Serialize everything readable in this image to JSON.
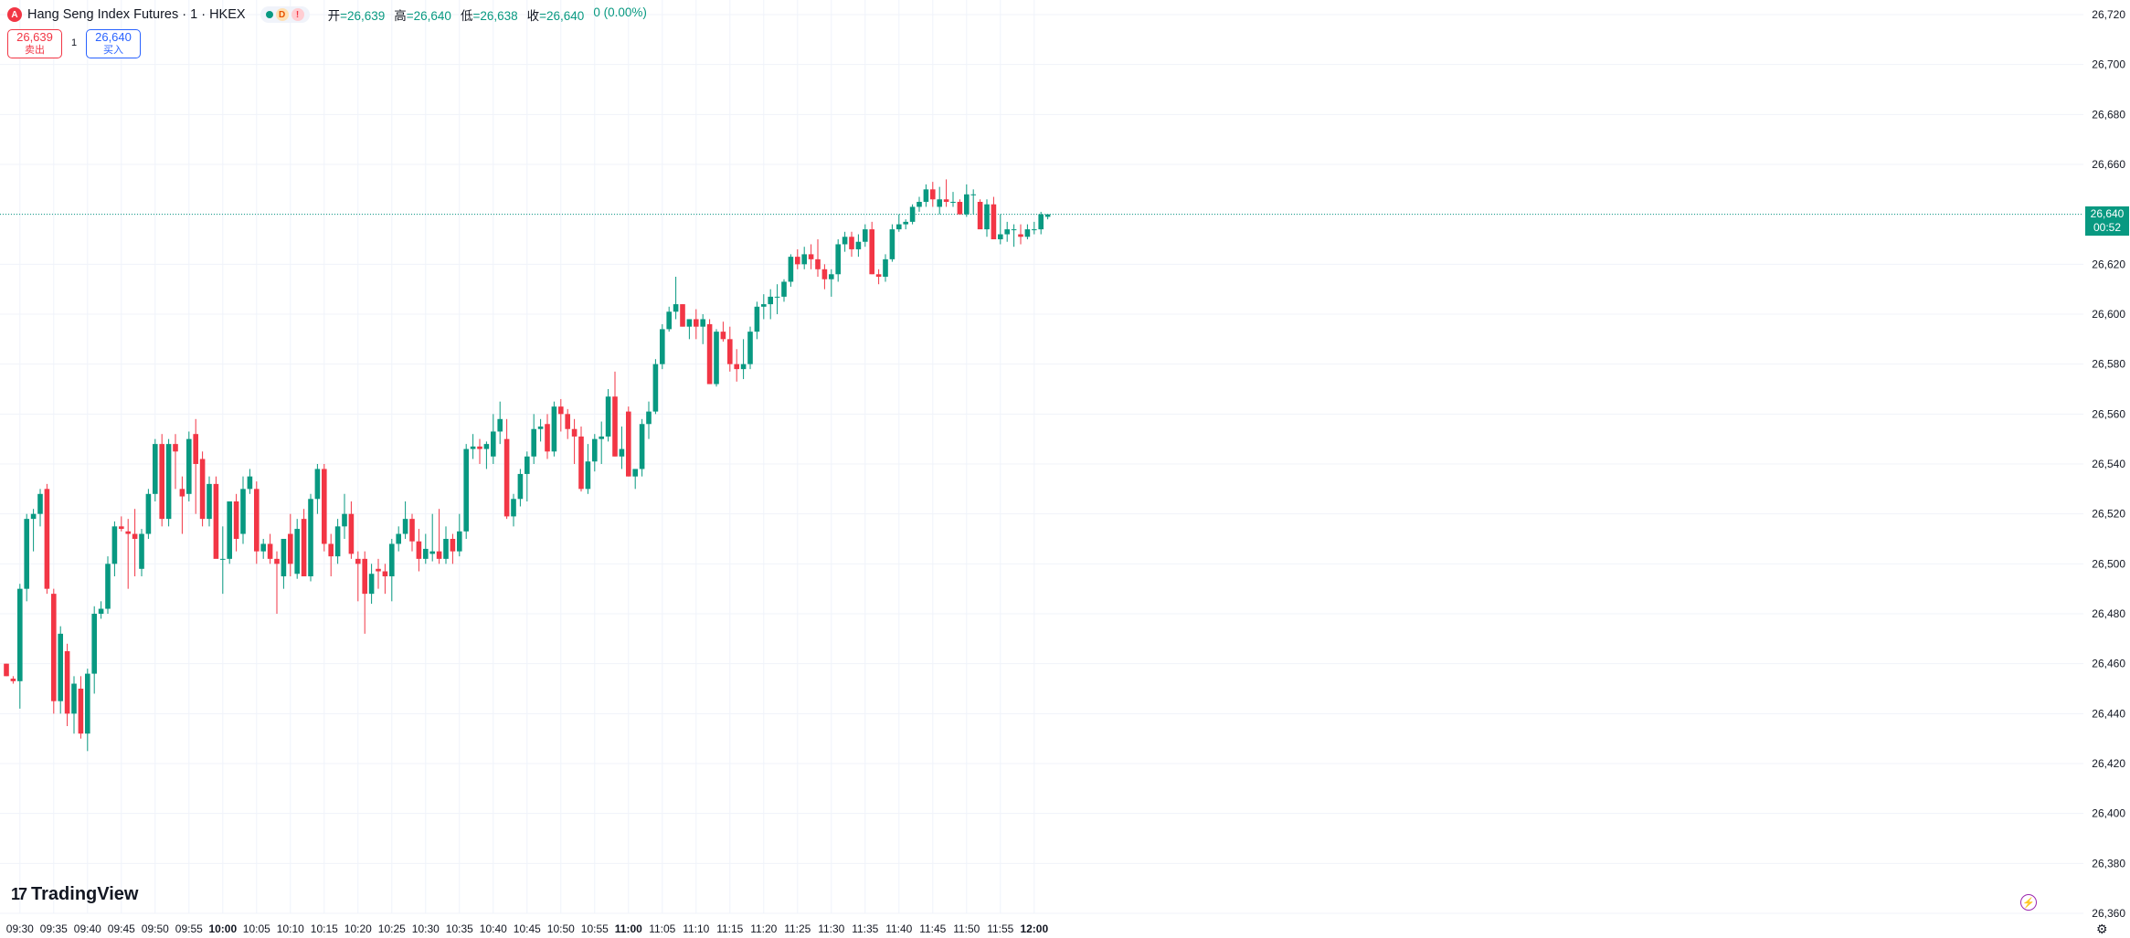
{
  "header": {
    "symbol_icon": "A",
    "title": "Hang Seng Index Futures · 1 · HKEX",
    "status": {
      "dot": "market-open-dot",
      "d_badge": "D",
      "alert_badge": "!"
    },
    "ohlc": {
      "open_label": "开",
      "open": "=26,639",
      "high_label": "高",
      "high": "=26,640",
      "low_label": "低",
      "low": "=26,638",
      "close_label": "收",
      "close": "=26,640",
      "change": "0 (0.00%)"
    }
  },
  "trade": {
    "sell_price": "26,639",
    "sell_label": "卖出",
    "quantity": "1",
    "buy_price": "26,640",
    "buy_label": "买入"
  },
  "price_tag": {
    "price": "26,640",
    "countdown": "00:52"
  },
  "footer": {
    "logo_text": "TradingView",
    "logo_mark": "17",
    "settings_icon": "gear-icon",
    "bolt_icon": "lightning-icon"
  },
  "colors": {
    "up": "#089981",
    "down": "#f23645",
    "grid": "#f0f3fa",
    "axis_text": "#131722"
  },
  "chart_data": {
    "type": "candlestick",
    "title": "",
    "xlabel": "",
    "ylabel": "",
    "ylim": [
      26360,
      26720
    ],
    "yticks": [
      "26,720",
      "26,700",
      "26,680",
      "26,660",
      "26,640",
      "26,620",
      "26,600",
      "26,580",
      "26,560",
      "26,540",
      "26,520",
      "26,500",
      "26,480",
      "26,460",
      "26,440",
      "26,420",
      "26,400",
      "26,380",
      "26,360"
    ],
    "xticks": [
      {
        "label": "09:30",
        "bar": 2,
        "bold": false
      },
      {
        "label": "09:35",
        "bar": 7,
        "bold": false
      },
      {
        "label": "09:40",
        "bar": 12,
        "bold": false
      },
      {
        "label": "09:45",
        "bar": 17,
        "bold": false
      },
      {
        "label": "09:50",
        "bar": 22,
        "bold": false
      },
      {
        "label": "09:55",
        "bar": 27,
        "bold": false
      },
      {
        "label": "10:00",
        "bar": 32,
        "bold": true
      },
      {
        "label": "10:05",
        "bar": 37,
        "bold": false
      },
      {
        "label": "10:10",
        "bar": 42,
        "bold": false
      },
      {
        "label": "10:15",
        "bar": 47,
        "bold": false
      },
      {
        "label": "10:20",
        "bar": 52,
        "bold": false
      },
      {
        "label": "10:25",
        "bar": 57,
        "bold": false
      },
      {
        "label": "10:30",
        "bar": 62,
        "bold": false
      },
      {
        "label": "10:35",
        "bar": 67,
        "bold": false
      },
      {
        "label": "10:40",
        "bar": 72,
        "bold": false
      },
      {
        "label": "10:45",
        "bar": 77,
        "bold": false
      },
      {
        "label": "10:50",
        "bar": 82,
        "bold": false
      },
      {
        "label": "10:55",
        "bar": 87,
        "bold": false
      },
      {
        "label": "11:00",
        "bar": 92,
        "bold": true
      },
      {
        "label": "11:05",
        "bar": 97,
        "bold": false
      },
      {
        "label": "11:10",
        "bar": 102,
        "bold": false
      },
      {
        "label": "11:15",
        "bar": 107,
        "bold": false
      },
      {
        "label": "11:20",
        "bar": 112,
        "bold": false
      },
      {
        "label": "11:25",
        "bar": 117,
        "bold": false
      },
      {
        "label": "11:30",
        "bar": 122,
        "bold": false
      },
      {
        "label": "11:35",
        "bar": 127,
        "bold": false
      },
      {
        "label": "11:40",
        "bar": 132,
        "bold": false
      },
      {
        "label": "11:45",
        "bar": 137,
        "bold": false
      },
      {
        "label": "11:50",
        "bar": 142,
        "bold": false
      },
      {
        "label": "11:55",
        "bar": 147,
        "bold": false
      },
      {
        "label": "12:00",
        "bar": 152,
        "bold": true
      }
    ],
    "last_price": 26640,
    "candles": [
      [
        26460,
        26460,
        26455,
        26455
      ],
      [
        26454,
        26455,
        26452,
        26453
      ],
      [
        26453,
        26492,
        26442,
        26490
      ],
      [
        26490,
        26520,
        26485,
        26518
      ],
      [
        26518,
        26522,
        26505,
        26520
      ],
      [
        26520,
        26530,
        26515,
        26528
      ],
      [
        26530,
        26532,
        26488,
        26490
      ],
      [
        26488,
        26490,
        26440,
        26445
      ],
      [
        26445,
        26475,
        26440,
        26472
      ],
      [
        26465,
        26468,
        26435,
        26440
      ],
      [
        26440,
        26455,
        26432,
        26452
      ],
      [
        26450,
        26455,
        26430,
        26432
      ],
      [
        26432,
        26458,
        26425,
        26456
      ],
      [
        26456,
        26483,
        26448,
        26480
      ],
      [
        26480,
        26485,
        26478,
        26482
      ],
      [
        26482,
        26503,
        26480,
        26500
      ],
      [
        26500,
        26517,
        26495,
        26515
      ],
      [
        26515,
        26519,
        26513,
        26514
      ],
      [
        26513,
        26518,
        26490,
        26512
      ],
      [
        26512,
        26522,
        26495,
        26510
      ],
      [
        26498,
        26514,
        26495,
        26512
      ],
      [
        26512,
        26530,
        26510,
        26528
      ],
      [
        26528,
        26550,
        26525,
        26548
      ],
      [
        26548,
        26552,
        26515,
        26518
      ],
      [
        26518,
        26550,
        26515,
        26548
      ],
      [
        26548,
        26552,
        26530,
        26545
      ],
      [
        26530,
        26535,
        26512,
        26527
      ],
      [
        26528,
        26553,
        26525,
        26550
      ],
      [
        26552,
        26558,
        26520,
        26540
      ],
      [
        26542,
        26545,
        26515,
        26518
      ],
      [
        26518,
        26535,
        26515,
        26532
      ],
      [
        26532,
        26535,
        26505,
        26502
      ],
      [
        26502,
        26515,
        26488,
        26502
      ],
      [
        26502,
        26525,
        26500,
        26525
      ],
      [
        26525,
        26528,
        26505,
        26510
      ],
      [
        26512,
        26535,
        26508,
        26530
      ],
      [
        26530,
        26538,
        26528,
        26535
      ],
      [
        26530,
        26533,
        26500,
        26505
      ],
      [
        26505,
        26510,
        26502,
        26508
      ],
      [
        26508,
        26512,
        26500,
        26502
      ],
      [
        26502,
        26505,
        26480,
        26500
      ],
      [
        26495,
        26508,
        26490,
        26510
      ],
      [
        26512,
        26520,
        26495,
        26500
      ],
      [
        26496,
        26518,
        26494,
        26514
      ],
      [
        26518,
        26522,
        26495,
        26495
      ],
      [
        26495,
        26528,
        26493,
        26526
      ],
      [
        26526,
        26540,
        26520,
        26538
      ],
      [
        26538,
        26540,
        26505,
        26508
      ],
      [
        26508,
        26512,
        26495,
        26503
      ],
      [
        26503,
        26518,
        26500,
        26515
      ],
      [
        26515,
        26528,
        26510,
        26520
      ],
      [
        26520,
        26525,
        26502,
        26504
      ],
      [
        26502,
        26505,
        26485,
        26500
      ],
      [
        26502,
        26505,
        26472,
        26488
      ],
      [
        26488,
        26500,
        26484,
        26496
      ],
      [
        26498,
        26502,
        26490,
        26497
      ],
      [
        26497,
        26500,
        26488,
        26495
      ],
      [
        26495,
        26510,
        26485,
        26508
      ],
      [
        26508,
        26515,
        26505,
        26512
      ],
      [
        26512,
        26525,
        26510,
        26518
      ],
      [
        26518,
        26520,
        26505,
        26509
      ],
      [
        26509,
        26514,
        26497,
        26502
      ],
      [
        26502,
        26512,
        26500,
        26506
      ],
      [
        26504,
        26520,
        26501,
        26505
      ],
      [
        26505,
        26522,
        26500,
        26502
      ],
      [
        26502,
        26515,
        26500,
        26510
      ],
      [
        26510,
        26512,
        26500,
        26505
      ],
      [
        26505,
        26520,
        26503,
        26513
      ],
      [
        26513,
        26548,
        26510,
        26546
      ],
      [
        26546,
        26552,
        26542,
        26547
      ],
      [
        26547,
        26550,
        26540,
        26546
      ],
      [
        26546,
        26549,
        26538,
        26548
      ],
      [
        26543,
        26560,
        26540,
        26553
      ],
      [
        26553,
        26565,
        26548,
        26558
      ],
      [
        26550,
        26558,
        26518,
        26519
      ],
      [
        26519,
        26528,
        26515,
        26526
      ],
      [
        26526,
        26538,
        26523,
        26536
      ],
      [
        26536,
        26545,
        26525,
        26543
      ],
      [
        26543,
        26560,
        26540,
        26554
      ],
      [
        26554,
        26558,
        26549,
        26555
      ],
      [
        26556,
        26560,
        26542,
        26545
      ],
      [
        26545,
        26565,
        26543,
        26563
      ],
      [
        26563,
        26566,
        26553,
        26560
      ],
      [
        26560,
        26562,
        26550,
        26554
      ],
      [
        26554,
        26558,
        26540,
        26551
      ],
      [
        26551,
        26555,
        26529,
        26530
      ],
      [
        26530,
        26548,
        26528,
        26541
      ],
      [
        26541,
        26552,
        26537,
        26550
      ],
      [
        26550,
        26557,
        26540,
        26551
      ],
      [
        26551,
        26570,
        26549,
        26567
      ],
      [
        26567,
        26577,
        26543,
        26543
      ],
      [
        26543,
        26555,
        26538,
        26546
      ],
      [
        26561,
        26563,
        26535,
        26535
      ],
      [
        26535,
        26538,
        26530,
        26538
      ],
      [
        26538,
        26558,
        26535,
        26556
      ],
      [
        26556,
        26565,
        26550,
        26561
      ],
      [
        26561,
        26582,
        26560,
        26580
      ],
      [
        26580,
        26596,
        26578,
        26594
      ],
      [
        26594,
        26603,
        26593,
        26601
      ],
      [
        26601,
        26615,
        26598,
        26604
      ],
      [
        26604,
        26604,
        26595,
        26595
      ],
      [
        26595,
        26598,
        26590,
        26598
      ],
      [
        26598,
        26602,
        26590,
        26595
      ],
      [
        26595,
        26600,
        26588,
        26598
      ],
      [
        26596,
        26598,
        26572,
        26572
      ],
      [
        26572,
        26594,
        26571,
        26593
      ],
      [
        26593,
        26597,
        26589,
        26590
      ],
      [
        26590,
        26595,
        26577,
        26580
      ],
      [
        26580,
        26586,
        26573,
        26578
      ],
      [
        26578,
        26590,
        26574,
        26580
      ],
      [
        26580,
        26595,
        26578,
        26593
      ],
      [
        26593,
        26605,
        26590,
        26603
      ],
      [
        26603,
        26608,
        26598,
        26604
      ],
      [
        26604,
        26610,
        26598,
        26607
      ],
      [
        26607,
        26612,
        26600,
        26607
      ],
      [
        26607,
        26614,
        26605,
        26613
      ],
      [
        26613,
        26624,
        26611,
        26623
      ],
      [
        26623,
        26626,
        26618,
        26620
      ],
      [
        26620,
        26627,
        26618,
        26624
      ],
      [
        26624,
        26628,
        26618,
        26622
      ],
      [
        26622,
        26630,
        26615,
        26618
      ],
      [
        26618,
        26620,
        26610,
        26614
      ],
      [
        26614,
        26618,
        26607,
        26616
      ],
      [
        26616,
        26630,
        26613,
        26628
      ],
      [
        26628,
        26633,
        26625,
        26631
      ],
      [
        26631,
        26633,
        26623,
        26626
      ],
      [
        26626,
        26632,
        26623,
        26629
      ],
      [
        26629,
        26636,
        26627,
        26634
      ],
      [
        26634,
        26637,
        26616,
        26616
      ],
      [
        26616,
        26618,
        26612,
        26615
      ],
      [
        26615,
        26624,
        26613,
        26622
      ],
      [
        26622,
        26636,
        26621,
        26634
      ],
      [
        26634,
        26640,
        26633,
        26636
      ],
      [
        26636,
        26638,
        26634,
        26637
      ],
      [
        26637,
        26644,
        26636,
        26643
      ],
      [
        26643,
        26647,
        26641,
        26645
      ],
      [
        26645,
        26652,
        26643,
        26650
      ],
      [
        26650,
        26653,
        26643,
        26646
      ],
      [
        26643,
        26651,
        26640,
        26646
      ],
      [
        26646,
        26654,
        26643,
        26645
      ],
      [
        26645,
        26649,
        26643,
        26645
      ],
      [
        26645,
        26646,
        26640,
        26640
      ],
      [
        26640,
        26652,
        26639,
        26648
      ],
      [
        26648,
        26650,
        26640,
        26648
      ],
      [
        26645,
        26646,
        26635,
        26634
      ],
      [
        26634,
        26646,
        26631,
        26644
      ],
      [
        26644,
        26647,
        26630,
        26630
      ],
      [
        26630,
        26640,
        26628,
        26632
      ],
      [
        26632,
        26637,
        26629,
        26634
      ],
      [
        26634,
        26636,
        26627,
        26634
      ],
      [
        26632,
        26636,
        26628,
        26631
      ],
      [
        26631,
        26636,
        26630,
        26634
      ],
      [
        26634,
        26637,
        26632,
        26634
      ],
      [
        26634,
        26641,
        26632,
        26640
      ],
      [
        26639,
        26640,
        26638,
        26640
      ]
    ]
  }
}
